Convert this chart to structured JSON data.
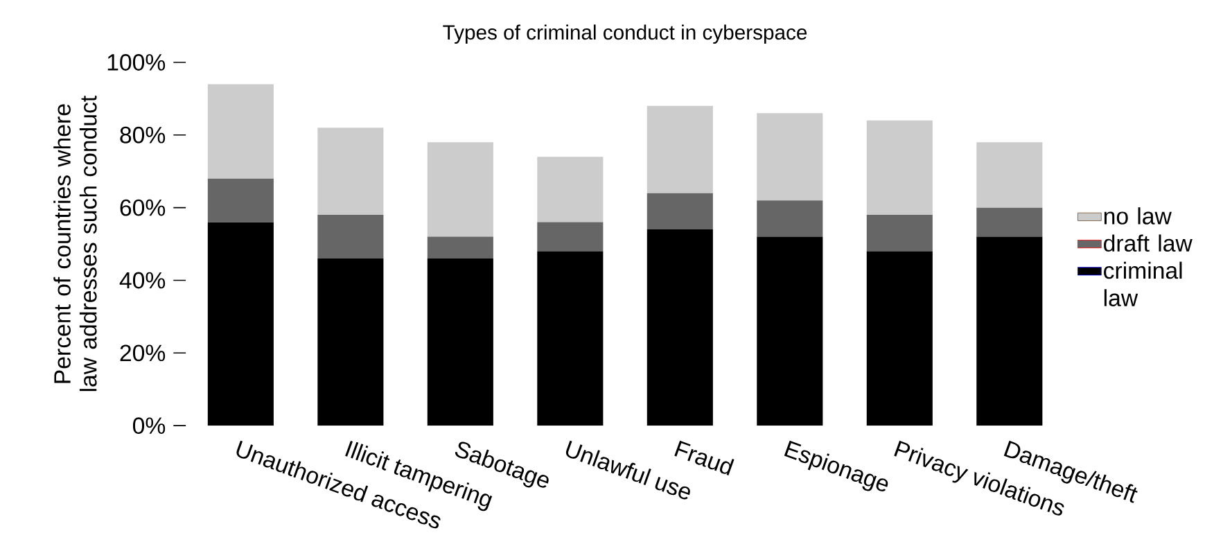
{
  "chart_data": {
    "type": "bar",
    "stacked": true,
    "title": "Types of criminal conduct in cyberspace",
    "ylabel": "Percent of countries where law addresses such conduct",
    "categories": [
      "Unauthorized access",
      "Illicit tampering",
      "Sabotage",
      "Unlawful use",
      "Fraud",
      "Espionage",
      "Privacy violations",
      "Damage/theft"
    ],
    "series": [
      {
        "name": "criminal law",
        "color": "#000000",
        "values": [
          56,
          46,
          46,
          48,
          54,
          52,
          48,
          52
        ]
      },
      {
        "name": "draft law",
        "color": "#666666",
        "values": [
          12,
          12,
          6,
          8,
          10,
          10,
          10,
          8
        ]
      },
      {
        "name": "no law",
        "color": "#cccccc",
        "values": [
          26,
          24,
          26,
          18,
          24,
          24,
          26,
          18
        ]
      }
    ],
    "ylim": [
      0,
      100
    ],
    "yticks": [
      {
        "value": 0,
        "label": "0%"
      },
      {
        "value": 20,
        "label": "20%"
      },
      {
        "value": 40,
        "label": "40%"
      },
      {
        "value": 60,
        "label": "60%"
      },
      {
        "value": 80,
        "label": "80%"
      },
      {
        "value": 100,
        "label": "100%"
      }
    ],
    "legend": "right"
  }
}
